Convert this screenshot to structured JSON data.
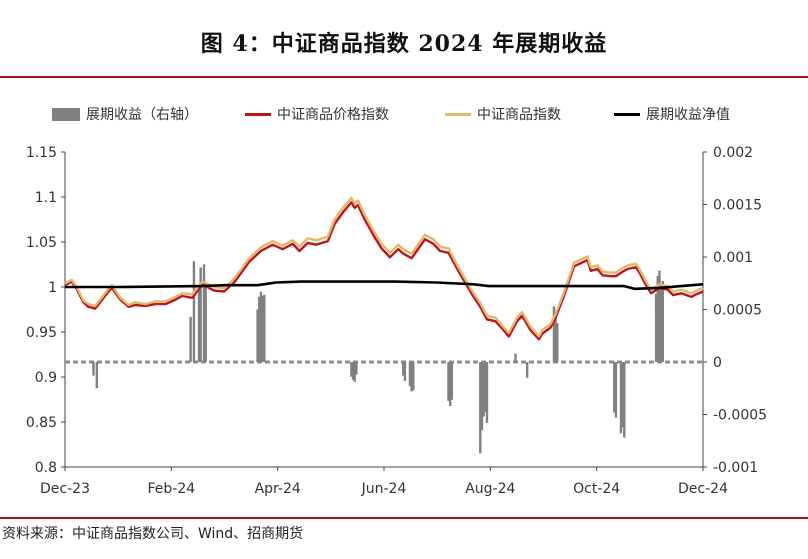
{
  "title": "图 4：中证商品指数 2024 年展期收益",
  "source": "资料来源：中证商品指数公司、Wind、招商期货",
  "colors": {
    "bars": "#808080",
    "index_red": "#c0141c",
    "index_gold": "#e2b86b",
    "net": "#000000",
    "accent": "#a31515"
  },
  "chart_data": {
    "type": "line",
    "x_tick_labels": [
      "Dec-23",
      "Feb-24",
      "Apr-24",
      "Jun-24",
      "Aug-24",
      "Oct-24",
      "Dec-24"
    ],
    "x_range": [
      "2023-12-01",
      "2024-12-16"
    ],
    "y_left": {
      "ylim": [
        0.8,
        1.15
      ],
      "ticks": [
        "0.8",
        "0.85",
        "0.9",
        "0.95",
        "1",
        "1.05",
        "1.1",
        "1.15"
      ]
    },
    "y_right": {
      "ylim": [
        -0.001,
        0.002
      ],
      "ticks": [
        "-0.001",
        "-0.0005",
        "0",
        "0.0005",
        "0.001",
        "0.0015",
        "0.002"
      ]
    },
    "legend": [
      "展期收益（右轴）",
      "中证商品价格指数",
      "中证商品指数",
      "展期收益净值"
    ],
    "series": [
      {
        "name": "中证商品价格指数",
        "axis": "left",
        "points": [
          [
            "2023-12-01",
            1.002
          ],
          [
            "2023-12-05",
            1.006
          ],
          [
            "2023-12-08",
            0.998
          ],
          [
            "2023-12-12",
            0.983
          ],
          [
            "2023-12-15",
            0.978
          ],
          [
            "2023-12-19",
            0.976
          ],
          [
            "2023-12-22",
            0.983
          ],
          [
            "2023-12-27",
            0.995
          ],
          [
            "2023-12-29",
            0.999
          ],
          [
            "2024-01-03",
            0.986
          ],
          [
            "2024-01-08",
            0.978
          ],
          [
            "2024-01-12",
            0.98
          ],
          [
            "2024-01-18",
            0.979
          ],
          [
            "2024-01-24",
            0.981
          ],
          [
            "2024-01-30",
            0.981
          ],
          [
            "2024-02-05",
            0.986
          ],
          [
            "2024-02-09",
            0.99
          ],
          [
            "2024-02-15",
            0.988
          ],
          [
            "2024-02-21",
            1.003
          ],
          [
            "2024-02-28",
            0.996
          ],
          [
            "2024-03-05",
            0.995
          ],
          [
            "2024-03-11",
            1.005
          ],
          [
            "2024-03-15",
            1.015
          ],
          [
            "2024-03-20",
            1.028
          ],
          [
            "2024-03-27",
            1.04
          ],
          [
            "2024-04-03",
            1.047
          ],
          [
            "2024-04-09",
            1.042
          ],
          [
            "2024-04-15",
            1.048
          ],
          [
            "2024-04-19",
            1.04
          ],
          [
            "2024-04-24",
            1.049
          ],
          [
            "2024-04-29",
            1.047
          ],
          [
            "2024-05-06",
            1.051
          ],
          [
            "2024-05-10",
            1.07
          ],
          [
            "2024-05-15",
            1.083
          ],
          [
            "2024-05-20",
            1.094
          ],
          [
            "2024-05-22",
            1.088
          ],
          [
            "2024-05-24",
            1.091
          ],
          [
            "2024-05-28",
            1.075
          ],
          [
            "2024-06-03",
            1.055
          ],
          [
            "2024-06-07",
            1.043
          ],
          [
            "2024-06-12",
            1.033
          ],
          [
            "2024-06-17",
            1.042
          ],
          [
            "2024-06-20",
            1.037
          ],
          [
            "2024-06-25",
            1.032
          ],
          [
            "2024-06-28",
            1.04
          ],
          [
            "2024-07-03",
            1.053
          ],
          [
            "2024-07-08",
            1.048
          ],
          [
            "2024-07-12",
            1.04
          ],
          [
            "2024-07-17",
            1.038
          ],
          [
            "2024-07-22",
            1.021
          ],
          [
            "2024-07-26",
            1.008
          ],
          [
            "2024-07-31",
            0.992
          ],
          [
            "2024-08-05",
            0.978
          ],
          [
            "2024-08-09",
            0.964
          ],
          [
            "2024-08-14",
            0.962
          ],
          [
            "2024-08-19",
            0.952
          ],
          [
            "2024-08-22",
            0.945
          ],
          [
            "2024-08-27",
            0.962
          ],
          [
            "2024-08-30",
            0.968
          ],
          [
            "2024-09-04",
            0.952
          ],
          [
            "2024-09-09",
            0.942
          ],
          [
            "2024-09-11",
            0.948
          ],
          [
            "2024-09-16",
            0.955
          ],
          [
            "2024-09-19",
            0.966
          ],
          [
            "2024-09-24",
            0.99
          ],
          [
            "2024-09-30",
            1.023
          ],
          [
            "2024-10-08",
            1.03
          ],
          [
            "2024-10-10",
            1.018
          ],
          [
            "2024-10-14",
            1.02
          ],
          [
            "2024-10-17",
            1.013
          ],
          [
            "2024-10-22",
            1.012
          ],
          [
            "2024-10-25",
            1.012
          ],
          [
            "2024-10-29",
            1.017
          ],
          [
            "2024-11-01",
            1.02
          ],
          [
            "2024-11-06",
            1.022
          ],
          [
            "2024-11-08",
            1.016
          ],
          [
            "2024-11-12",
            1.002
          ],
          [
            "2024-11-15",
            0.993
          ],
          [
            "2024-11-20",
            0.999
          ],
          [
            "2024-11-25",
            0.997
          ],
          [
            "2024-11-28",
            0.991
          ],
          [
            "2024-12-03",
            0.993
          ],
          [
            "2024-12-09",
            0.989
          ],
          [
            "2024-12-12",
            0.992
          ],
          [
            "2024-12-16",
            0.995
          ]
        ]
      },
      {
        "name": "中证商品指数",
        "axis": "left",
        "points": [
          [
            "2023-12-01",
            1.004
          ],
          [
            "2023-12-05",
            1.008
          ],
          [
            "2023-12-08",
            1.0
          ],
          [
            "2023-12-12",
            0.985
          ],
          [
            "2023-12-15",
            0.981
          ],
          [
            "2023-12-19",
            0.979
          ],
          [
            "2023-12-22",
            0.986
          ],
          [
            "2023-12-27",
            0.998
          ],
          [
            "2023-12-29",
            1.002
          ],
          [
            "2024-01-03",
            0.988
          ],
          [
            "2024-01-08",
            0.98
          ],
          [
            "2024-01-12",
            0.983
          ],
          [
            "2024-01-18",
            0.981
          ],
          [
            "2024-01-24",
            0.984
          ],
          [
            "2024-01-30",
            0.984
          ],
          [
            "2024-02-05",
            0.989
          ],
          [
            "2024-02-09",
            0.993
          ],
          [
            "2024-02-15",
            0.992
          ],
          [
            "2024-02-21",
            1.006
          ],
          [
            "2024-02-28",
            1.0
          ],
          [
            "2024-03-05",
            0.999
          ],
          [
            "2024-03-11",
            1.009
          ],
          [
            "2024-03-15",
            1.019
          ],
          [
            "2024-03-20",
            1.032
          ],
          [
            "2024-03-27",
            1.044
          ],
          [
            "2024-04-03",
            1.051
          ],
          [
            "2024-04-09",
            1.046
          ],
          [
            "2024-04-15",
            1.052
          ],
          [
            "2024-04-19",
            1.045
          ],
          [
            "2024-04-24",
            1.054
          ],
          [
            "2024-04-29",
            1.052
          ],
          [
            "2024-05-06",
            1.056
          ],
          [
            "2024-05-10",
            1.075
          ],
          [
            "2024-05-15",
            1.088
          ],
          [
            "2024-05-20",
            1.099
          ],
          [
            "2024-05-22",
            1.093
          ],
          [
            "2024-05-24",
            1.096
          ],
          [
            "2024-05-28",
            1.08
          ],
          [
            "2024-06-03",
            1.06
          ],
          [
            "2024-06-07",
            1.048
          ],
          [
            "2024-06-12",
            1.038
          ],
          [
            "2024-06-17",
            1.047
          ],
          [
            "2024-06-20",
            1.042
          ],
          [
            "2024-06-25",
            1.037
          ],
          [
            "2024-06-28",
            1.045
          ],
          [
            "2024-07-03",
            1.058
          ],
          [
            "2024-07-08",
            1.053
          ],
          [
            "2024-07-12",
            1.045
          ],
          [
            "2024-07-17",
            1.043
          ],
          [
            "2024-07-22",
            1.025
          ],
          [
            "2024-07-26",
            1.012
          ],
          [
            "2024-07-31",
            0.996
          ],
          [
            "2024-08-05",
            0.982
          ],
          [
            "2024-08-09",
            0.968
          ],
          [
            "2024-08-14",
            0.966
          ],
          [
            "2024-08-19",
            0.955
          ],
          [
            "2024-08-22",
            0.949
          ],
          [
            "2024-08-27",
            0.966
          ],
          [
            "2024-08-30",
            0.972
          ],
          [
            "2024-09-04",
            0.956
          ],
          [
            "2024-09-09",
            0.945
          ],
          [
            "2024-09-11",
            0.952
          ],
          [
            "2024-09-16",
            0.959
          ],
          [
            "2024-09-19",
            0.97
          ],
          [
            "2024-09-24",
            0.994
          ],
          [
            "2024-09-30",
            1.027
          ],
          [
            "2024-10-08",
            1.034
          ],
          [
            "2024-10-10",
            1.022
          ],
          [
            "2024-10-14",
            1.024
          ],
          [
            "2024-10-17",
            1.017
          ],
          [
            "2024-10-22",
            1.016
          ],
          [
            "2024-10-25",
            1.016
          ],
          [
            "2024-10-29",
            1.021
          ],
          [
            "2024-11-01",
            1.024
          ],
          [
            "2024-11-06",
            1.026
          ],
          [
            "2024-11-08",
            1.02
          ],
          [
            "2024-11-12",
            1.006
          ],
          [
            "2024-11-15",
            0.997
          ],
          [
            "2024-11-20",
            1.003
          ],
          [
            "2024-11-25",
            1.001
          ],
          [
            "2024-11-28",
            0.995
          ],
          [
            "2024-12-03",
            0.997
          ],
          [
            "2024-12-09",
            0.993
          ],
          [
            "2024-12-12",
            0.996
          ],
          [
            "2024-12-16",
            0.999
          ]
        ]
      },
      {
        "name": "展期收益净值",
        "axis": "left",
        "points": [
          [
            "2023-12-01",
            1.0
          ],
          [
            "2024-01-02",
            1.0
          ],
          [
            "2024-02-20",
            1.001
          ],
          [
            "2024-03-05",
            1.002
          ],
          [
            "2024-03-25",
            1.002
          ],
          [
            "2024-04-05",
            1.005
          ],
          [
            "2024-04-20",
            1.006
          ],
          [
            "2024-06-15",
            1.006
          ],
          [
            "2024-07-10",
            1.005
          ],
          [
            "2024-08-01",
            1.003
          ],
          [
            "2024-08-10",
            1.001
          ],
          [
            "2024-09-30",
            1.001
          ],
          [
            "2024-10-30",
            1.001
          ],
          [
            "2024-11-05",
            0.998
          ],
          [
            "2024-11-20",
            0.999
          ],
          [
            "2024-12-03",
            1.001
          ],
          [
            "2024-12-16",
            1.003
          ]
        ]
      },
      {
        "name": "展期收益（右轴）",
        "axis": "right",
        "type": "bar",
        "points": [
          [
            "2023-12-18",
            -0.00013
          ],
          [
            "2023-12-20",
            -0.00025
          ],
          [
            "2024-02-14",
            0.00043
          ],
          [
            "2024-02-16",
            0.00096
          ],
          [
            "2024-02-19",
            0.00072
          ],
          [
            "2024-02-20",
            0.0009
          ],
          [
            "2024-02-22",
            0.00093
          ],
          [
            "2024-02-23",
            0.00075
          ],
          [
            "2024-03-25",
            0.0005
          ],
          [
            "2024-03-26",
            0.00062
          ],
          [
            "2024-03-27",
            0.00067
          ],
          [
            "2024-03-28",
            0.00063
          ],
          [
            "2024-03-29",
            0.00064
          ],
          [
            "2024-05-20",
            -0.00014
          ],
          [
            "2024-05-21",
            -0.00017
          ],
          [
            "2024-05-22",
            -0.00019
          ],
          [
            "2024-05-23",
            -0.00012
          ],
          [
            "2024-06-20",
            -0.00013
          ],
          [
            "2024-06-21",
            -0.00018
          ],
          [
            "2024-06-24",
            -0.00023
          ],
          [
            "2024-06-25",
            -0.00028
          ],
          [
            "2024-06-26",
            -0.00027
          ],
          [
            "2024-07-17",
            -0.00037
          ],
          [
            "2024-07-18",
            -0.00042
          ],
          [
            "2024-07-19",
            -0.00036
          ],
          [
            "2024-08-05",
            -0.00087
          ],
          [
            "2024-08-06",
            -0.00065
          ],
          [
            "2024-08-07",
            -0.00052
          ],
          [
            "2024-08-08",
            -0.00048
          ],
          [
            "2024-08-09",
            -0.00058
          ],
          [
            "2024-08-26",
            8e-05
          ],
          [
            "2024-09-02",
            -0.00015
          ],
          [
            "2024-09-18",
            0.00053
          ],
          [
            "2024-09-19",
            0.00048
          ],
          [
            "2024-09-20",
            0.00037
          ],
          [
            "2024-10-24",
            -0.00048
          ],
          [
            "2024-10-25",
            -0.00053
          ],
          [
            "2024-10-28",
            -0.00068
          ],
          [
            "2024-10-29",
            -0.00062
          ],
          [
            "2024-10-30",
            -0.00072
          ],
          [
            "2024-11-18",
            0.00065
          ],
          [
            "2024-11-19",
            0.00082
          ],
          [
            "2024-11-20",
            0.00087
          ],
          [
            "2024-11-21",
            0.00073
          ],
          [
            "2024-11-22",
            0.00077
          ]
        ]
      }
    ]
  }
}
